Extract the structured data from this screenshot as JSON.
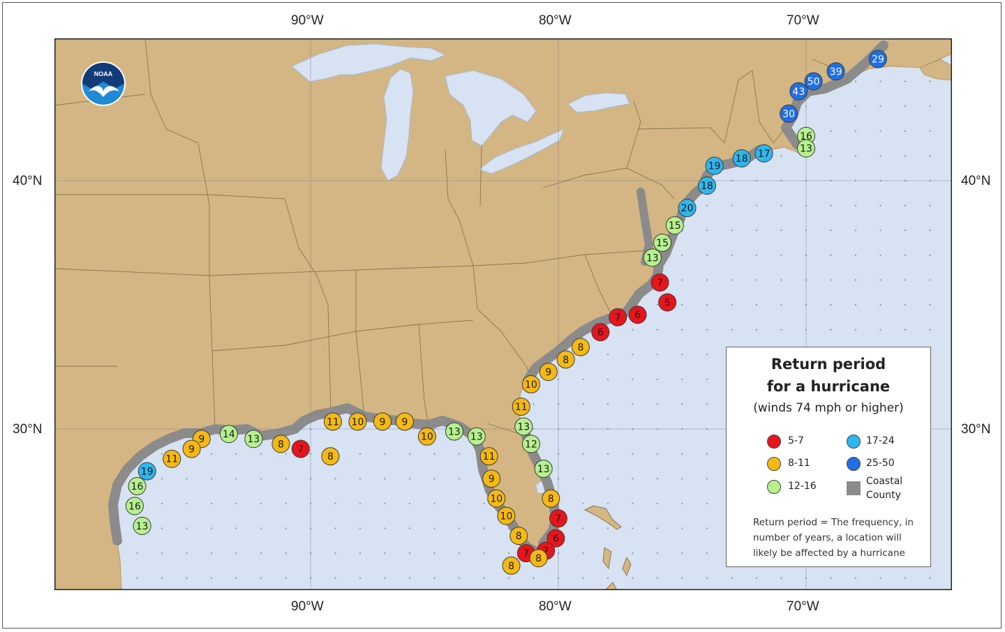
{
  "grid": {
    "lon_top": [
      "90°W",
      "80°W",
      "70°W"
    ],
    "lon_bottom": [
      "90°W",
      "80°W",
      "70°W"
    ],
    "lat_left": [
      "40°N",
      "30°N"
    ],
    "lat_right": [
      "40°N",
      "30°N"
    ]
  },
  "logo": {
    "text": "NOAA"
  },
  "legend": {
    "title_line1": "Return period",
    "title_line2": "for a hurricane",
    "subtitle": "(winds 74 mph or higher)",
    "items": [
      {
        "label": "5-7",
        "color": "#e8141c"
      },
      {
        "label": "17-24",
        "color": "#2fb6ee"
      },
      {
        "label": "8-11",
        "color": "#f6b913"
      },
      {
        "label": "25-50",
        "color": "#1f6fe6"
      },
      {
        "label": "12-16",
        "color": "#b6f08f"
      },
      {
        "label": "Coastal County",
        "color": "#8b8b8b"
      }
    ],
    "note": "Return period = The frequency, in number of years, a location will likely be affected by a hurricane"
  },
  "colors": {
    "land": "#d3b683",
    "water": "#d7e2f2",
    "coastal_county": "#8b8b8b"
  },
  "markers": [
    {
      "label": "29",
      "lon": -67.1,
      "lat": 44.9,
      "cls": "25-50"
    },
    {
      "label": "39",
      "lon": -68.8,
      "lat": 44.4,
      "cls": "25-50"
    },
    {
      "label": "50",
      "lon": -69.7,
      "lat": 44.0,
      "cls": "25-50"
    },
    {
      "label": "43",
      "lon": -70.3,
      "lat": 43.6,
      "cls": "25-50"
    },
    {
      "label": "30",
      "lon": -70.7,
      "lat": 42.7,
      "cls": "25-50"
    },
    {
      "label": "16",
      "lon": -70.0,
      "lat": 41.8,
      "cls": "12-16"
    },
    {
      "label": "13",
      "lon": -70.0,
      "lat": 41.3,
      "cls": "12-16"
    },
    {
      "label": "17",
      "lon": -71.7,
      "lat": 41.1,
      "cls": "17-24"
    },
    {
      "label": "18",
      "lon": -72.6,
      "lat": 40.9,
      "cls": "17-24"
    },
    {
      "label": "19",
      "lon": -73.7,
      "lat": 40.6,
      "cls": "17-24"
    },
    {
      "label": "18",
      "lon": -74.0,
      "lat": 39.8,
      "cls": "17-24"
    },
    {
      "label": "20",
      "lon": -74.8,
      "lat": 38.9,
      "cls": "17-24"
    },
    {
      "label": "15",
      "lon": -75.3,
      "lat": 38.2,
      "cls": "12-16"
    },
    {
      "label": "15",
      "lon": -75.8,
      "lat": 37.5,
      "cls": "12-16"
    },
    {
      "label": "13",
      "lon": -76.2,
      "lat": 36.9,
      "cls": "12-16"
    },
    {
      "label": "7",
      "lon": -75.9,
      "lat": 35.9,
      "cls": "5-7"
    },
    {
      "label": "5",
      "lon": -75.6,
      "lat": 35.1,
      "cls": "5-7"
    },
    {
      "label": "6",
      "lon": -76.8,
      "lat": 34.6,
      "cls": "5-7"
    },
    {
      "label": "7",
      "lon": -77.6,
      "lat": 34.5,
      "cls": "5-7"
    },
    {
      "label": "6",
      "lon": -78.3,
      "lat": 33.9,
      "cls": "5-7"
    },
    {
      "label": "8",
      "lon": -79.1,
      "lat": 33.3,
      "cls": "8-11"
    },
    {
      "label": "8",
      "lon": -79.7,
      "lat": 32.8,
      "cls": "8-11"
    },
    {
      "label": "9",
      "lon": -80.4,
      "lat": 32.3,
      "cls": "8-11"
    },
    {
      "label": "10",
      "lon": -81.1,
      "lat": 31.8,
      "cls": "8-11"
    },
    {
      "label": "11",
      "lon": -81.5,
      "lat": 30.9,
      "cls": "8-11"
    },
    {
      "label": "13",
      "lon": -81.4,
      "lat": 30.1,
      "cls": "12-16"
    },
    {
      "label": "12",
      "lon": -81.1,
      "lat": 29.4,
      "cls": "12-16"
    },
    {
      "label": "13",
      "lon": -80.6,
      "lat": 28.4,
      "cls": "12-16"
    },
    {
      "label": "8",
      "lon": -80.3,
      "lat": 27.2,
      "cls": "8-11"
    },
    {
      "label": "7",
      "lon": -80.0,
      "lat": 26.4,
      "cls": "5-7"
    },
    {
      "label": "6",
      "lon": -80.1,
      "lat": 25.6,
      "cls": "5-7"
    },
    {
      "label": "7",
      "lon": -80.5,
      "lat": 25.1,
      "cls": "5-7"
    },
    {
      "label": "7",
      "lon": -81.3,
      "lat": 25.0,
      "cls": "5-7"
    },
    {
      "label": "8",
      "lon": -81.6,
      "lat": 25.7,
      "cls": "8-11"
    },
    {
      "label": "8",
      "lon": -80.8,
      "lat": 24.8,
      "cls": "8-11"
    },
    {
      "label": "8",
      "lon": -81.9,
      "lat": 24.5,
      "cls": "8-11"
    },
    {
      "label": "10",
      "lon": -82.1,
      "lat": 26.5,
      "cls": "8-11"
    },
    {
      "label": "10",
      "lon": -82.5,
      "lat": 27.2,
      "cls": "8-11"
    },
    {
      "label": "9",
      "lon": -82.7,
      "lat": 28.0,
      "cls": "8-11"
    },
    {
      "label": "11",
      "lon": -82.8,
      "lat": 28.9,
      "cls": "8-11"
    },
    {
      "label": "13",
      "lon": -83.3,
      "lat": 29.7,
      "cls": "12-16"
    },
    {
      "label": "13",
      "lon": -84.2,
      "lat": 29.9,
      "cls": "12-16"
    },
    {
      "label": "10",
      "lon": -85.3,
      "lat": 29.7,
      "cls": "8-11"
    },
    {
      "label": "9",
      "lon": -86.2,
      "lat": 30.3,
      "cls": "8-11"
    },
    {
      "label": "9",
      "lon": -87.1,
      "lat": 30.3,
      "cls": "8-11"
    },
    {
      "label": "10",
      "lon": -88.1,
      "lat": 30.3,
      "cls": "8-11"
    },
    {
      "label": "11",
      "lon": -89.1,
      "lat": 30.3,
      "cls": "8-11"
    },
    {
      "label": "8",
      "lon": -89.2,
      "lat": 28.9,
      "cls": "8-11"
    },
    {
      "label": "7",
      "lon": -90.4,
      "lat": 29.2,
      "cls": "5-7"
    },
    {
      "label": "8",
      "lon": -91.2,
      "lat": 29.4,
      "cls": "8-11"
    },
    {
      "label": "13",
      "lon": -92.3,
      "lat": 29.6,
      "cls": "12-16"
    },
    {
      "label": "14",
      "lon": -93.3,
      "lat": 29.8,
      "cls": "12-16"
    },
    {
      "label": "9",
      "lon": -94.4,
      "lat": 29.6,
      "cls": "8-11"
    },
    {
      "label": "9",
      "lon": -94.8,
      "lat": 29.2,
      "cls": "8-11"
    },
    {
      "label": "11",
      "lon": -95.6,
      "lat": 28.8,
      "cls": "8-11"
    },
    {
      "label": "19",
      "lon": -96.6,
      "lat": 28.3,
      "cls": "17-24"
    },
    {
      "label": "16",
      "lon": -97.0,
      "lat": 27.7,
      "cls": "12-16"
    },
    {
      "label": "16",
      "lon": -97.1,
      "lat": 26.9,
      "cls": "12-16"
    },
    {
      "label": "13",
      "lon": -96.8,
      "lat": 26.1,
      "cls": "12-16"
    }
  ]
}
